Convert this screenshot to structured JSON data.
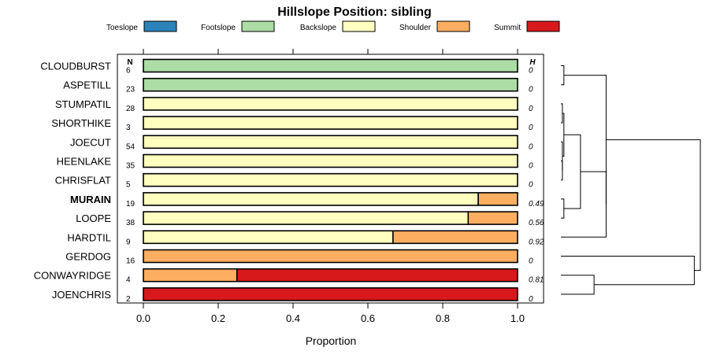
{
  "chart_data": {
    "type": "bar",
    "orientation": "horizontal",
    "stacked": true,
    "title": "Hillslope Position: sibling",
    "xlabel": "Proportion",
    "xlim": [
      0,
      1
    ],
    "xticks": [
      "0.0",
      "0.2",
      "0.4",
      "0.6",
      "0.8",
      "1.0"
    ],
    "n_header": "N",
    "h_header": "H",
    "highlighted": "MURAIN",
    "legend": [
      {
        "name": "Toeslope",
        "color": "#2B83BA"
      },
      {
        "name": "Footslope",
        "color": "#ABDDA4"
      },
      {
        "name": "Backslope",
        "color": "#FFFFBF"
      },
      {
        "name": "Shoulder",
        "color": "#FDAE61"
      },
      {
        "name": "Summit",
        "color": "#D7191C"
      }
    ],
    "rows": [
      {
        "name": "CLOUDBURST",
        "n": "6",
        "h": "0",
        "values": [
          0,
          1,
          0,
          0,
          0
        ]
      },
      {
        "name": "ASPETILL",
        "n": "23",
        "h": "0",
        "values": [
          0,
          1,
          0,
          0,
          0
        ]
      },
      {
        "name": "STUMPATIL",
        "n": "28",
        "h": "0",
        "values": [
          0,
          0,
          1,
          0,
          0
        ]
      },
      {
        "name": "SHORTHIKE",
        "n": "3",
        "h": "0",
        "values": [
          0,
          0,
          1,
          0,
          0
        ]
      },
      {
        "name": "JOECUT",
        "n": "54",
        "h": "0",
        "values": [
          0,
          0,
          1,
          0,
          0
        ]
      },
      {
        "name": "HEENLAKE",
        "n": "35",
        "h": "0",
        "values": [
          0,
          0,
          1,
          0,
          0
        ]
      },
      {
        "name": "CHRISFLAT",
        "n": "5",
        "h": "0",
        "values": [
          0,
          0,
          1,
          0,
          0
        ]
      },
      {
        "name": "MURAIN",
        "n": "19",
        "h": "0.49",
        "values": [
          0,
          0,
          0.895,
          0.105,
          0
        ]
      },
      {
        "name": "LOOPE",
        "n": "38",
        "h": "0.56",
        "values": [
          0,
          0,
          0.868,
          0.132,
          0
        ]
      },
      {
        "name": "HARDTIL",
        "n": "9",
        "h": "0.92",
        "values": [
          0,
          0,
          0.667,
          0.333,
          0
        ]
      },
      {
        "name": "GERDOG",
        "n": "16",
        "h": "0",
        "values": [
          0,
          0,
          0,
          1,
          0
        ]
      },
      {
        "name": "CONWAYRIDGE",
        "n": "4",
        "h": "0.81",
        "values": [
          0,
          0,
          0,
          0.25,
          0.75
        ]
      },
      {
        "name": "JOENCHRIS",
        "n": "2",
        "h": "0",
        "values": [
          0,
          0,
          0,
          0,
          1
        ]
      }
    ],
    "dendrogram": {
      "merges": [
        {
          "left": 2,
          "right": 3,
          "height": 0.02
        },
        {
          "left": 5,
          "right": 6,
          "height": 0.02
        },
        {
          "left": 4,
          "right": "m2",
          "height": 0.02
        },
        {
          "left": "m1",
          "right": "m3",
          "height": 0.04
        },
        {
          "left": 0,
          "right": 1,
          "height": 0.04
        },
        {
          "left": 7,
          "right": 8,
          "height": 0.04
        },
        {
          "left": "m4",
          "right": "m6",
          "height": 0.26
        },
        {
          "left": 9,
          "right": "m7",
          "height": 0.6
        },
        {
          "left": "m5",
          "right": "m8",
          "height": 0.6
        },
        {
          "left": 11,
          "right": 12,
          "height": 0.44
        },
        {
          "left": 10,
          "right": "m10",
          "height": 1.77
        },
        {
          "left": "m9",
          "right": "m11",
          "height": 1.85
        }
      ]
    }
  }
}
